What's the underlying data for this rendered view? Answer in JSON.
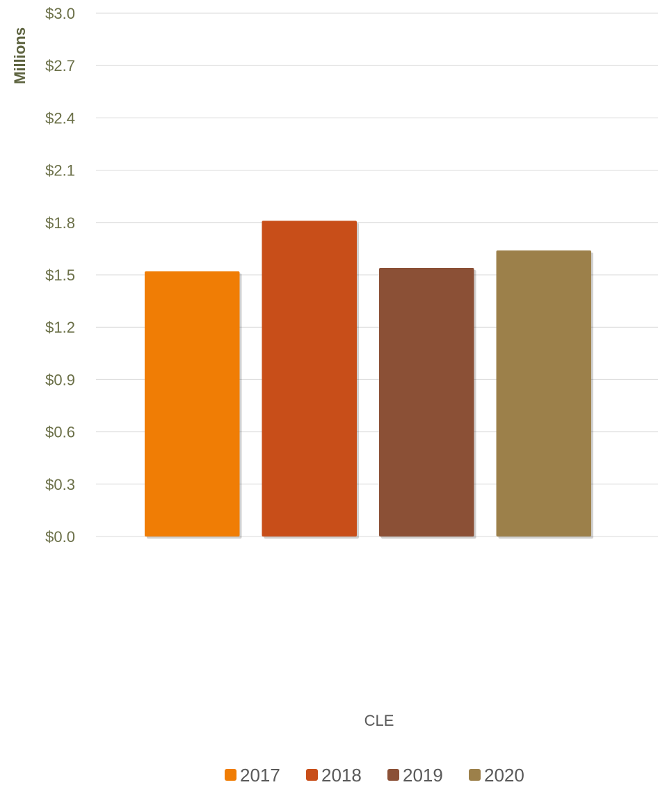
{
  "chart_data": {
    "type": "bar",
    "title": "",
    "xlabel": "",
    "ylabel": "Millions",
    "categories": [
      "CLE"
    ],
    "series": [
      {
        "name": "2017",
        "values": [
          1.52
        ],
        "color": "#f07d05"
      },
      {
        "name": "2018",
        "values": [
          1.81
        ],
        "color": "#c84e19"
      },
      {
        "name": "2019",
        "values": [
          1.54
        ],
        "color": "#8b5036"
      },
      {
        "name": "2020",
        "values": [
          1.64
        ],
        "color": "#9c804a"
      }
    ],
    "ylim": [
      0,
      3.0
    ],
    "yticks": [
      0.0,
      0.3,
      0.6,
      0.9,
      1.2,
      1.5,
      1.8,
      2.1,
      2.4,
      2.7,
      3.0
    ],
    "ytick_labels": [
      "$0.0",
      "$0.3",
      "$0.6",
      "$0.9",
      "$1.2",
      "$1.5",
      "$1.8",
      "$2.1",
      "$2.4",
      "$2.7",
      "$3.0"
    ],
    "grid": true,
    "legend_position": "bottom"
  }
}
